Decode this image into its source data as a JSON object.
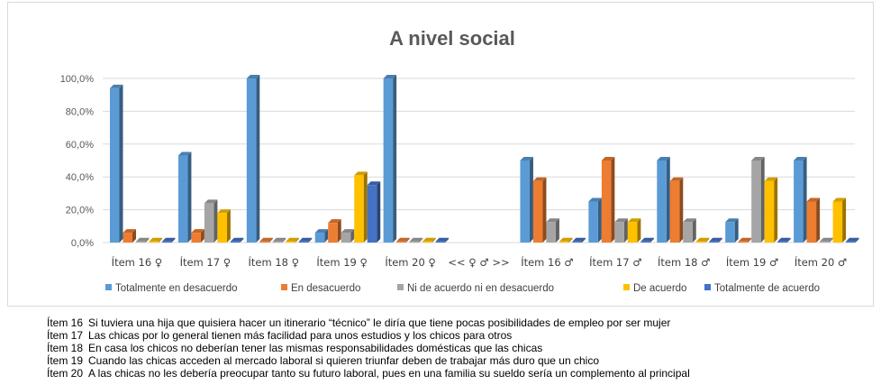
{
  "chart_data": {
    "type": "bar",
    "title": "A nivel social",
    "xlabel": "",
    "ylabel": "",
    "ylim": [
      0,
      100
    ],
    "y_ticks": [
      "0,0%",
      "20,0%",
      "40,0%",
      "60,0%",
      "80,0%",
      "100,0%"
    ],
    "y_tick_values": [
      0,
      20,
      40,
      60,
      80,
      100
    ],
    "grid": true,
    "legend_position": "bottom",
    "style": "3d-clustered-bar",
    "categories": [
      "Ítem 16 ♀",
      "Ítem 17 ♀",
      "Ítem 18 ♀",
      "Ítem 19 ♀",
      "Ítem 20 ♀",
      "<< ♀  ♂  >>",
      "Ítem 16 ♂",
      "Ítem 17 ♂",
      "Ítem 18 ♂",
      "Ítem 19 ♂",
      "Ítem 20 ♂"
    ],
    "series": [
      {
        "name": "Totalmente  en desacuerdo",
        "color": "#5b9bd5",
        "values": [
          94,
          53,
          100,
          6,
          100,
          0,
          50,
          25,
          50,
          12.5,
          50
        ]
      },
      {
        "name": "En desacuerdo",
        "color": "#ed7d31",
        "values": [
          6,
          6,
          0,
          12,
          0,
          0,
          37.5,
          50,
          37.5,
          0,
          25
        ]
      },
      {
        "name": "Ni de acuerdo ni en desacuerdo",
        "color": "#a5a5a5",
        "values": [
          0,
          24,
          0,
          6,
          0,
          0,
          12.5,
          12.5,
          12.5,
          50,
          0
        ]
      },
      {
        "name": "De acuerdo",
        "color": "#ffc000",
        "values": [
          0,
          18,
          0,
          41,
          0,
          0,
          0,
          12.5,
          0,
          37.5,
          25
        ]
      },
      {
        "name": "Totalmente de acuerdo",
        "color": "#4472c4",
        "values": [
          0,
          0,
          0,
          35,
          0,
          0,
          0,
          0,
          0,
          0,
          0
        ]
      }
    ]
  },
  "notes": [
    {
      "item": "Ítem 16",
      "text": "Si tuviera una hija que quisiera hacer un itinerario “técnico” le diría que tiene pocas posibilidades de empleo por ser mujer"
    },
    {
      "item": "Ítem 17",
      "text": "Las chicas por lo general  tienen más facilidad para unos estudios y los chicos para otros"
    },
    {
      "item": "Ítem 18",
      "text": "En casa los chicos no deberían tener las mismas responsabilidades domésticas que las chicas"
    },
    {
      "item": "Ítem 19",
      "text": "Cuando las chicas acceden al mercado laboral si quieren triunfar deben de trabajar más duro que un chico"
    },
    {
      "item": "Ítem 20",
      "text": "A las chicas no les debería preocupar tanto su futuro laboral, pues en una familia su sueldo sería un complemento al principal"
    }
  ]
}
